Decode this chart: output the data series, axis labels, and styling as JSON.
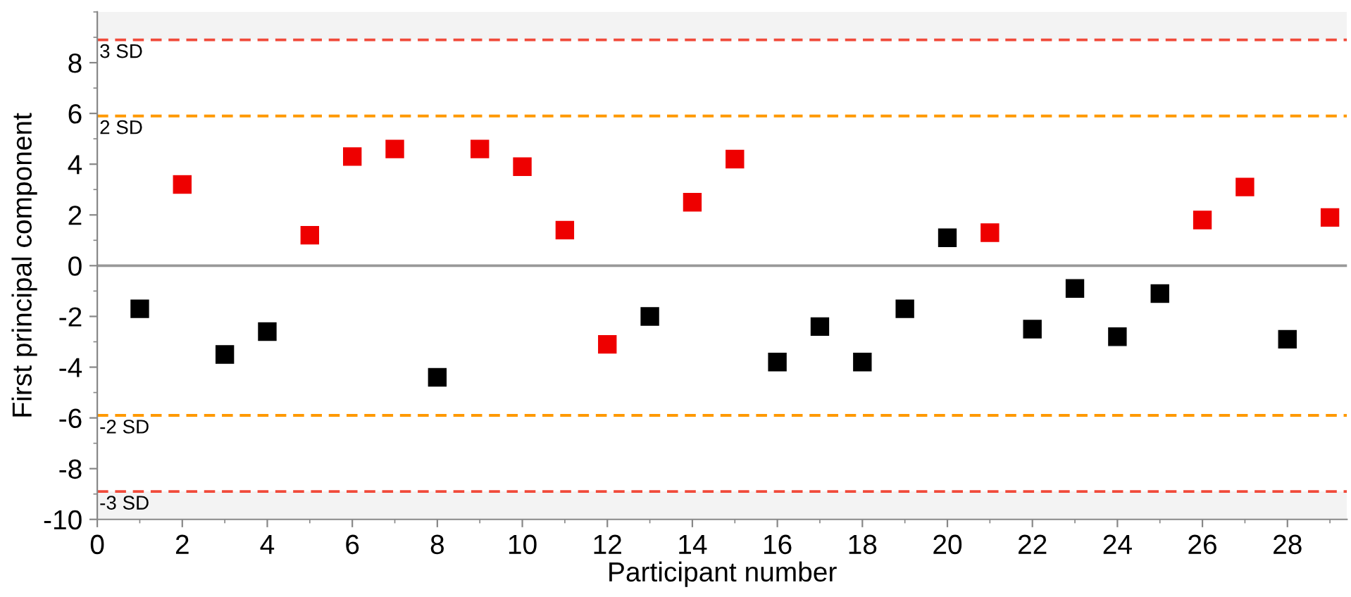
{
  "chart_data": {
    "type": "scatter",
    "xlabel": "Participant number",
    "ylabel": "First principal component",
    "x": [
      1,
      2,
      3,
      4,
      5,
      6,
      7,
      8,
      9,
      10,
      11,
      12,
      13,
      14,
      15,
      16,
      17,
      18,
      19,
      20,
      21,
      22,
      23,
      24,
      25,
      26,
      27,
      28,
      29
    ],
    "values": [
      -1.7,
      3.2,
      -3.5,
      -2.6,
      1.2,
      4.3,
      4.6,
      -4.4,
      4.6,
      3.9,
      1.4,
      -3.1,
      -2.0,
      2.5,
      4.2,
      -3.8,
      -2.4,
      -3.8,
      -1.7,
      1.1,
      1.3,
      -2.5,
      -0.9,
      -2.8,
      -1.1,
      1.8,
      3.1,
      -2.9,
      1.9
    ],
    "colors": [
      "#000000",
      "#ee0000",
      "#000000",
      "#000000",
      "#ee0000",
      "#ee0000",
      "#ee0000",
      "#000000",
      "#ee0000",
      "#ee0000",
      "#ee0000",
      "#ee0000",
      "#000000",
      "#ee0000",
      "#ee0000",
      "#000000",
      "#000000",
      "#000000",
      "#000000",
      "#000000",
      "#ee0000",
      "#000000",
      "#000000",
      "#000000",
      "#000000",
      "#ee0000",
      "#ee0000",
      "#000000",
      "#ee0000"
    ],
    "marker": "square",
    "xlim": [
      0,
      29.4
    ],
    "xticks": [
      0,
      2,
      4,
      6,
      8,
      10,
      12,
      14,
      16,
      18,
      20,
      22,
      24,
      26,
      28
    ],
    "ylim": [
      -10,
      10
    ],
    "yticks": [
      -10,
      -8,
      -6,
      -4,
      -2,
      0,
      2,
      4,
      6,
      8
    ],
    "ref_lines": [
      {
        "axis": "y",
        "value": 8.9,
        "label": "3 SD",
        "color": "#f04a3a",
        "line_style": "dashed"
      },
      {
        "axis": "y",
        "value": 5.9,
        "label": "2 SD",
        "color": "#ff9900",
        "line_style": "dashed"
      },
      {
        "axis": "y",
        "value": 0,
        "label": null,
        "color": "#999999",
        "line_style": "solid"
      },
      {
        "axis": "y",
        "value": -5.9,
        "label": "-2 SD",
        "color": "#ff9900",
        "line_style": "dashed"
      },
      {
        "axis": "y",
        "value": -8.9,
        "label": "-3 SD",
        "color": "#f04a3a",
        "line_style": "dashed"
      }
    ],
    "bands": [
      {
        "axis": "y",
        "from": 8.9,
        "to": 10,
        "label": null,
        "color": "#f3f3f3"
      },
      {
        "axis": "y",
        "from": -10,
        "to": -8.9,
        "label": null,
        "color": "#f3f3f3"
      }
    ],
    "grid": false,
    "legend": false
  }
}
